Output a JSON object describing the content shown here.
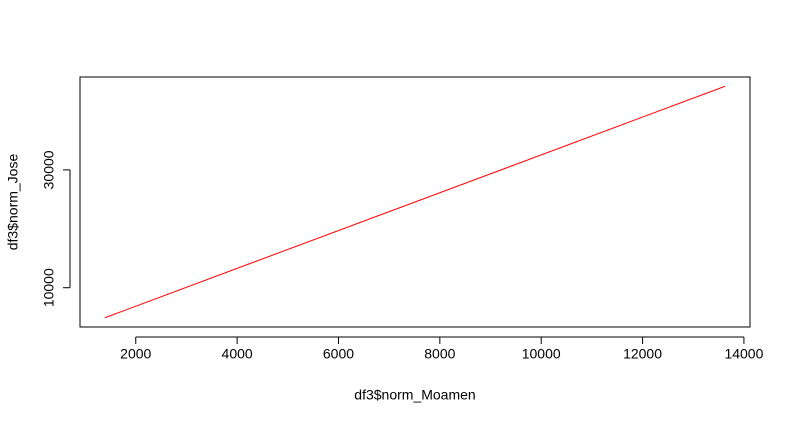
{
  "chart_data": {
    "type": "line",
    "xlabel": "df3$norm_Moamen",
    "ylabel": "df3$norm_Jose",
    "x": [
      1390,
      13630
    ],
    "series": [
      {
        "color": "#ff0000",
        "values": [
          4900,
          44200
        ]
      }
    ],
    "xlim": [
      900,
      14120
    ],
    "xticks": [
      2000,
      4000,
      6000,
      8000,
      10000,
      12000,
      14000
    ],
    "ylim": [
      3330,
      45770
    ],
    "yticks": [
      10000,
      30000
    ]
  }
}
